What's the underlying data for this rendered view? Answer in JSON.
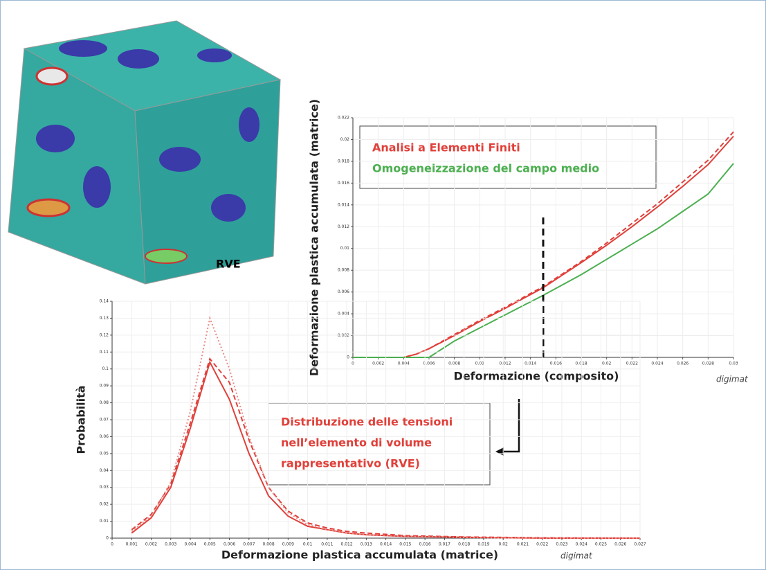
{
  "image_label": "RVE",
  "chart_data": [
    {
      "type": "line",
      "xlabel": "Deformazione (composito)",
      "ylabel": "Deformazione plastica accumulata (matrice)",
      "logo": "digimat",
      "x": [
        0,
        0.002,
        0.004,
        0.005,
        0.006,
        0.008,
        0.01,
        0.012,
        0.015,
        0.018,
        0.02,
        0.022,
        0.024,
        0.026,
        0.028,
        0.03
      ],
      "series": [
        {
          "name": "Analisi a Elementi Finiti",
          "color": "#e0403a",
          "dash": "solid",
          "values": [
            0,
            0,
            0,
            0.0003,
            0.0008,
            0.002,
            0.0033,
            0.0045,
            0.0064,
            0.0087,
            0.0103,
            0.012,
            0.0138,
            0.0157,
            0.0177,
            0.0203
          ]
        },
        {
          "color": "#e0403a",
          "dash": "dashed",
          "values": [
            0,
            0,
            0,
            0.0003,
            0.0008,
            0.0021,
            0.0034,
            0.0046,
            0.0065,
            0.0088,
            0.0105,
            0.0123,
            0.0141,
            0.0161,
            0.0181,
            0.0207
          ]
        },
        {
          "name": "Omogeneizzazione del campo medio",
          "color": "#4caf50",
          "dash": "solid",
          "values": [
            0,
            0,
            0,
            0,
            0,
            0.0015,
            0.0027,
            0.0039,
            0.0057,
            0.0076,
            0.009,
            0.0104,
            0.0118,
            0.0134,
            0.015,
            0.0178
          ]
        }
      ],
      "reference_line": {
        "x": 0.015,
        "y_top": 0.013
      },
      "xlim": [
        0,
        0.03
      ],
      "ylim": [
        0,
        0.022
      ],
      "xticks": [
        0,
        0.002,
        0.004,
        0.006,
        0.008,
        0.01,
        0.012,
        0.014,
        0.016,
        0.018,
        0.02,
        0.022,
        0.024,
        0.026,
        0.028,
        0.03
      ],
      "yticks": [
        0,
        0.002,
        0.004,
        0.006,
        0.008,
        0.01,
        0.012,
        0.014,
        0.016,
        0.018,
        0.02,
        0.022
      ],
      "grid": true
    },
    {
      "type": "line",
      "xlabel": "Deformazione plastica accumulata (matrice)",
      "ylabel": "Probabilità",
      "logo": "digimat",
      "annotation": [
        "Distribuzione delle tensioni",
        "nell’elemento di volume",
        "rappresentativo (RVE)"
      ],
      "x": [
        0.001,
        0.002,
        0.003,
        0.004,
        0.005,
        0.006,
        0.007,
        0.008,
        0.009,
        0.01,
        0.011,
        0.012,
        0.013,
        0.015,
        0.018,
        0.022,
        0.027
      ],
      "series": [
        {
          "color": "#e0403a",
          "dash": "solid",
          "values": [
            0.003,
            0.012,
            0.03,
            0.065,
            0.104,
            0.082,
            0.05,
            0.025,
            0.013,
            0.007,
            0.005,
            0.003,
            0.002,
            0.001,
            0.0005,
            0,
            0
          ]
        },
        {
          "color": "#e0403a",
          "dash": "dashed",
          "values": [
            0.005,
            0.014,
            0.032,
            0.068,
            0.106,
            0.092,
            0.058,
            0.03,
            0.016,
            0.009,
            0.006,
            0.004,
            0.003,
            0.0015,
            0.0007,
            0.0002,
            0
          ]
        },
        {
          "color": "#e88a86",
          "dash": "dotted",
          "values": [
            0.004,
            0.013,
            0.033,
            0.075,
            0.13,
            0.1,
            0.06,
            0.03,
            0.015,
            0.008,
            0.005,
            0.003,
            0.002,
            0.001,
            0.0004,
            0,
            0
          ]
        }
      ],
      "xlim": [
        0,
        0.027
      ],
      "ylim": [
        0,
        0.14
      ],
      "xticks": [
        0,
        0.001,
        0.002,
        0.003,
        0.004,
        0.005,
        0.006,
        0.007,
        0.008,
        0.009,
        0.01,
        0.011,
        0.012,
        0.013,
        0.014,
        0.015,
        0.016,
        0.017,
        0.018,
        0.019,
        0.02,
        0.021,
        0.022,
        0.023,
        0.024,
        0.025,
        0.026,
        0.027
      ],
      "yticks": [
        0,
        0.01,
        0.02,
        0.03,
        0.04,
        0.05,
        0.06,
        0.07,
        0.08,
        0.09,
        0.1,
        0.11,
        0.12,
        0.13,
        0.14
      ],
      "grid": true
    }
  ]
}
